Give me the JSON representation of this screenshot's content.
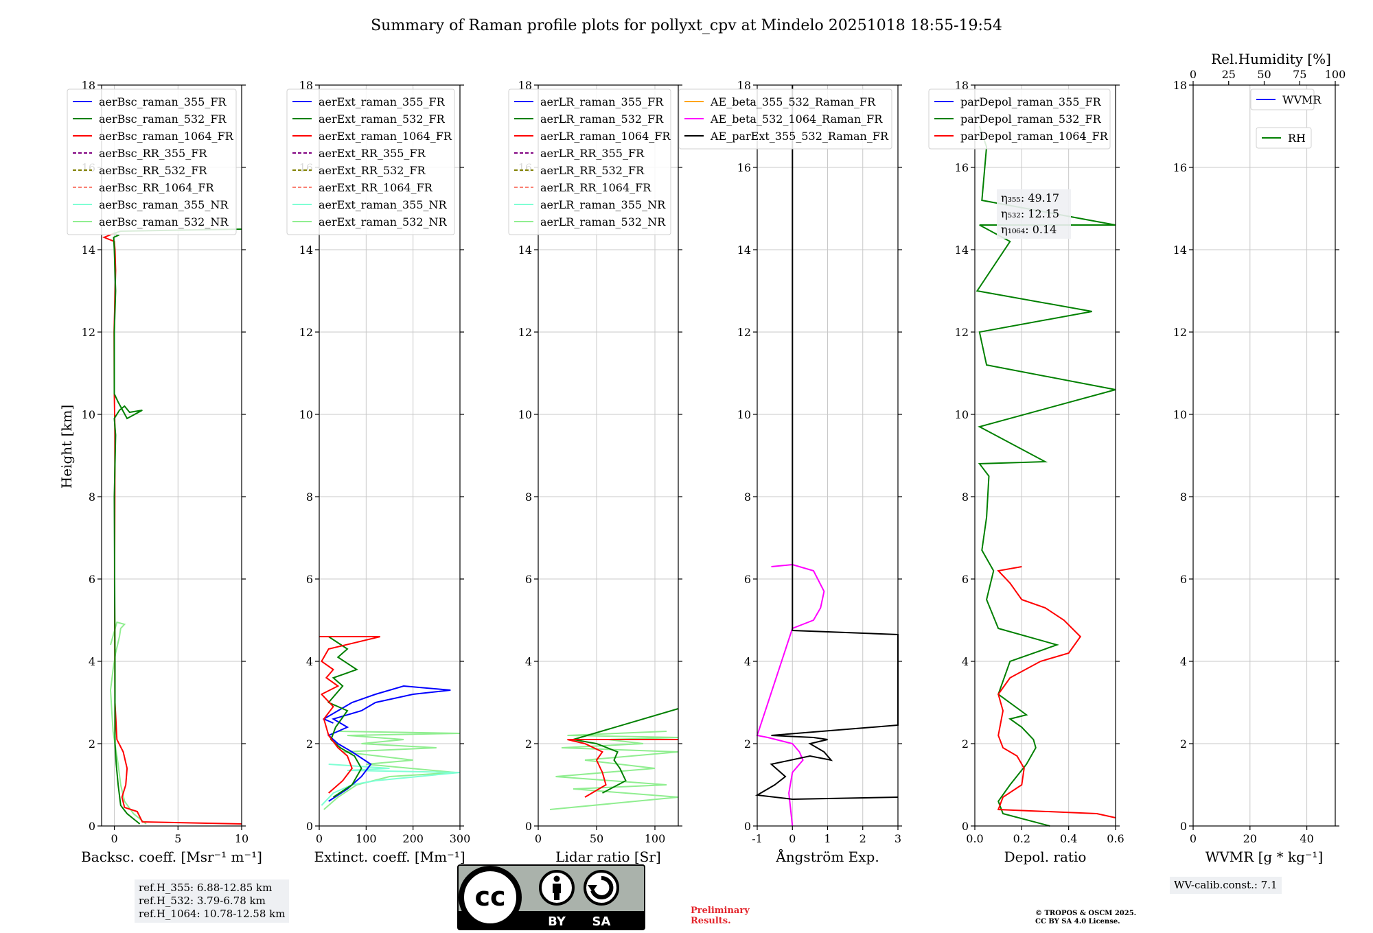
{
  "title": "Summary of Raman profile plots for pollyxt_cpv at Mindelo 20251018 18:55-19:54",
  "colors": {
    "blue": "#0000ff",
    "green": "#008000",
    "red": "#ff0000",
    "purple": "#800080",
    "olive": "#808000",
    "salmon": "#fa8072",
    "cyan": "#7fffd4",
    "lightgreen": "#90ee90",
    "orange": "#ffa500",
    "magenta": "#ff00ff",
    "black": "#000000"
  },
  "ylabel": "Height [km]",
  "chart_data": [
    {
      "type": "line",
      "xlabel": "Backsc. coeff. [Msr⁻¹ m⁻¹]",
      "xlim": [
        -1,
        10
      ],
      "ylim": [
        0,
        18
      ],
      "xticks": [
        0,
        5,
        10
      ],
      "yticks": [
        0,
        2,
        4,
        6,
        8,
        10,
        12,
        14,
        16,
        18
      ],
      "legend": [
        "aerBsc_raman_355_FR",
        "aerBsc_raman_532_FR",
        "aerBsc_raman_1064_FR",
        "aerBsc_RR_355_FR",
        "aerBsc_RR_532_FR",
        "aerBsc_RR_1064_FR",
        "aerBsc_raman_355_NR",
        "aerBsc_raman_532_NR"
      ],
      "series": [
        {
          "name": "aerBsc_raman_532_NR",
          "x": [
            2.5,
            1.5,
            0.8,
            0.5,
            0.3,
            0.1,
            -0.1,
            -0.2,
            -0.3,
            -0.1,
            0.1,
            0.4,
            0.5,
            0.8,
            0.2,
            -0.3
          ],
          "y": [
            0.05,
            0.3,
            0.6,
            1.0,
            1.5,
            1.9,
            2.3,
            2.8,
            3.3,
            3.8,
            4.2,
            4.6,
            4.8,
            4.9,
            4.95,
            4.4
          ]
        },
        {
          "name": "aerBsc_raman_1064_FR",
          "x": [
            10,
            2.2,
            1.8,
            0.8,
            0.6,
            0.9,
            1.0,
            0.7,
            0.2,
            0.05,
            0.02,
            0.05,
            0.0,
            -0.02,
            0.1,
            0.05,
            0.0,
            -0.8,
            0.0
          ],
          "y": [
            0.05,
            0.1,
            0.35,
            0.45,
            0.7,
            1.0,
            1.4,
            1.8,
            2.1,
            3.0,
            6.0,
            9.5,
            10.5,
            12.0,
            13.5,
            14.0,
            14.2,
            14.3,
            14.4
          ]
        },
        {
          "name": "aerBsc_raman_532_FR",
          "x": [
            2.0,
            1.0,
            0.5,
            0.3,
            0.15,
            0.05,
            0.05,
            0.0,
            0.1,
            0.0,
            0.4,
            0.8,
            1.2,
            2.2,
            1.0,
            0.3,
            0.0,
            0.0,
            0.1,
            0.0,
            -0.05,
            0.3,
            0.0,
            0.5,
            10.0
          ],
          "y": [
            0.05,
            0.3,
            0.5,
            1.0,
            1.5,
            2.0,
            4.0,
            8.0,
            9.5,
            9.9,
            10.1,
            10.2,
            10.05,
            10.1,
            9.9,
            10.3,
            10.5,
            12.0,
            13.0,
            14.0,
            14.3,
            14.35,
            14.4,
            14.45,
            14.5
          ]
        }
      ]
    },
    {
      "type": "line",
      "xlabel": "Extinct. coeff. [Mm⁻¹]",
      "xlim": [
        0,
        300
      ],
      "ylim": [
        0,
        18
      ],
      "xticks": [
        0,
        100,
        200,
        300
      ],
      "yticks": [
        0,
        2,
        4,
        6,
        8,
        10,
        12,
        14,
        16,
        18
      ],
      "legend": [
        "aerExt_raman_355_FR",
        "aerExt_raman_532_FR",
        "aerExt_raman_1064_FR",
        "aerExt_RR_355_FR",
        "aerExt_RR_532_FR",
        "aerExt_RR_1064_FR",
        "aerExt_raman_355_NR",
        "aerExt_raman_532_NR"
      ],
      "series": [
        {
          "name": "aerExt_raman_532_NR",
          "x": [
            10,
            40,
            80,
            150,
            290,
            100,
            200,
            50,
            250,
            90,
            180,
            60,
            300,
            40
          ],
          "y": [
            0.4,
            0.7,
            1.0,
            1.2,
            1.3,
            1.5,
            1.6,
            1.8,
            1.9,
            2.0,
            2.1,
            2.2,
            2.25,
            2.3
          ]
        },
        {
          "name": "aerExt_raman_355_NR",
          "x": [
            5,
            30,
            70,
            120,
            300,
            60,
            150,
            20
          ],
          "y": [
            0.5,
            0.8,
            1.0,
            1.1,
            1.3,
            1.35,
            1.4,
            1.5
          ]
        },
        {
          "name": "aerExt_raman_355_FR",
          "x": [
            20,
            60,
            90,
            110,
            70,
            40,
            20,
            60,
            30,
            90,
            120,
            200,
            280,
            180,
            120,
            70,
            40,
            10,
            30
          ],
          "y": [
            0.6,
            0.9,
            1.2,
            1.5,
            1.8,
            2.0,
            2.2,
            2.4,
            2.6,
            2.8,
            3.0,
            3.2,
            3.3,
            3.4,
            3.2,
            3.0,
            2.8,
            2.6,
            2.5
          ]
        },
        {
          "name": "aerExt_raman_532_FR",
          "x": [
            30,
            70,
            90,
            75,
            45,
            25,
            35,
            60,
            20,
            50,
            30,
            80,
            40,
            60,
            20
          ],
          "y": [
            0.7,
            1.0,
            1.4,
            1.7,
            1.9,
            2.1,
            2.4,
            2.8,
            3.0,
            3.4,
            3.6,
            3.8,
            4.1,
            4.3,
            4.6
          ]
        },
        {
          "name": "aerExt_raman_1064_FR",
          "x": [
            20,
            50,
            70,
            60,
            40,
            20,
            10,
            30,
            5,
            40,
            15,
            30,
            5,
            20,
            130,
            0
          ],
          "y": [
            0.8,
            1.1,
            1.4,
            1.7,
            1.9,
            2.2,
            2.6,
            2.9,
            3.2,
            3.4,
            3.6,
            3.8,
            4.0,
            4.3,
            4.6,
            4.6
          ]
        }
      ]
    },
    {
      "type": "line",
      "xlabel": "Lidar ratio [Sr]",
      "xlim": [
        0,
        120
      ],
      "ylim": [
        0,
        18
      ],
      "xticks": [
        0,
        50,
        100
      ],
      "yticks": [
        0,
        2,
        4,
        6,
        8,
        10,
        12,
        14,
        16,
        18
      ],
      "legend": [
        "aerLR_raman_355_FR",
        "aerLR_raman_532_FR",
        "aerLR_raman_1064_FR",
        "aerLR_RR_355_FR",
        "aerLR_RR_532_FR",
        "aerLR_RR_1064_FR",
        "aerLR_raman_355_NR",
        "aerLR_raman_532_NR"
      ],
      "series": [
        {
          "name": "aerLR_raman_532_NR",
          "x": [
            10,
            120,
            30,
            110,
            15,
            100,
            40,
            120,
            20,
            90,
            60,
            120,
            25,
            110
          ],
          "y": [
            0.4,
            0.7,
            0.9,
            1.0,
            1.2,
            1.4,
            1.6,
            1.8,
            1.9,
            2.0,
            2.1,
            2.15,
            2.2,
            2.3
          ]
        },
        {
          "name": "aerLR_raman_532_FR",
          "x": [
            55,
            75,
            70,
            65,
            68,
            50,
            30,
            120
          ],
          "y": [
            0.8,
            1.1,
            1.4,
            1.6,
            1.8,
            2.0,
            2.1,
            2.85
          ]
        },
        {
          "name": "aerLR_raman_1064_FR",
          "x": [
            40,
            58,
            55,
            50,
            55,
            40,
            25,
            120
          ],
          "y": [
            0.7,
            1.0,
            1.3,
            1.6,
            1.8,
            2.0,
            2.1,
            2.1
          ]
        }
      ]
    },
    {
      "type": "line",
      "xlabel": "Ångström Exp.",
      "xlim": [
        -1,
        3
      ],
      "ylim": [
        0,
        18
      ],
      "xticks": [
        -1,
        0,
        1,
        2,
        3
      ],
      "yticks": [
        0,
        2,
        4,
        6,
        8,
        10,
        12,
        14,
        16,
        18
      ],
      "legend": [
        "AE_beta_355_532_Raman_FR",
        "AE_beta_532_1064_Raman_FR",
        "AE_parExt_355_532_Raman_FR"
      ],
      "series": [
        {
          "name": "AE_beta_532_1064_Raman_FR",
          "x": [
            0.0,
            -0.1,
            0.0,
            0.3,
            0.2,
            0.0,
            -0.7,
            -1.0,
            0.0,
            0.6,
            0.8,
            0.9,
            0.6,
            0.0,
            -0.6
          ],
          "y": [
            0.0,
            0.8,
            1.3,
            1.6,
            1.8,
            2.0,
            2.15,
            2.2,
            4.8,
            5.0,
            5.3,
            5.7,
            6.2,
            6.35,
            6.3
          ]
        },
        {
          "name": "AE_parExt_355_532_Raman_FR",
          "x": [
            3.0,
            0.0,
            -1.0,
            -0.5,
            -0.2,
            -0.6,
            0.5,
            1.1,
            0.9,
            0.5,
            1.0,
            0.6,
            -0.6,
            3.0,
            3.0,
            0.0,
            0.0
          ],
          "y": [
            0.7,
            0.65,
            0.75,
            1.0,
            1.2,
            1.5,
            1.7,
            1.6,
            1.8,
            2.0,
            2.1,
            2.15,
            2.2,
            2.45,
            4.65,
            4.75,
            18.0
          ]
        }
      ]
    },
    {
      "type": "line",
      "xlabel": "Depol. ratio",
      "xlim": [
        0,
        0.6
      ],
      "ylim": [
        0,
        18
      ],
      "xticks": [
        0.0,
        0.2,
        0.4,
        0.6
      ],
      "yticks": [
        0,
        2,
        4,
        6,
        8,
        10,
        12,
        14,
        16,
        18
      ],
      "legend": [
        "parDepol_raman_355_FR",
        "parDepol_raman_532_FR",
        "parDepol_raman_1064_FR"
      ],
      "series": [
        {
          "name": "parDepol_raman_532_FR",
          "x": [
            0.32,
            0.12,
            0.1,
            0.15,
            0.22,
            0.26,
            0.25,
            0.2,
            0.15,
            0.22,
            0.1,
            0.15,
            0.35,
            0.1,
            0.05,
            0.08,
            0.03,
            0.05,
            0.06,
            0.02,
            0.3,
            0.02,
            0.6,
            0.05,
            0.02,
            0.5,
            0.01,
            0.15,
            0.02,
            0.6,
            0.03,
            0.05,
            0.02
          ],
          "y": [
            0.0,
            0.3,
            0.6,
            1.0,
            1.5,
            1.9,
            2.1,
            2.4,
            2.6,
            2.7,
            3.2,
            4.0,
            4.4,
            4.8,
            5.5,
            6.2,
            6.7,
            7.5,
            8.5,
            8.8,
            8.85,
            9.7,
            10.6,
            11.2,
            12.0,
            12.5,
            13.0,
            14.2,
            14.6,
            14.6,
            15.2,
            16.5,
            17.0
          ]
        },
        {
          "name": "parDepol_raman_1064_FR",
          "x": [
            0.6,
            0.52,
            0.1,
            0.12,
            0.2,
            0.21,
            0.18,
            0.12,
            0.1,
            0.12,
            0.1,
            0.15,
            0.28,
            0.4,
            0.45,
            0.38,
            0.3,
            0.2,
            0.15,
            0.1,
            0.2
          ],
          "y": [
            0.2,
            0.3,
            0.4,
            0.7,
            1.0,
            1.4,
            1.7,
            1.9,
            2.2,
            2.8,
            3.2,
            3.6,
            4.0,
            4.2,
            4.6,
            5.0,
            5.3,
            5.5,
            5.9,
            6.2,
            6.3
          ]
        }
      ],
      "annotations": [
        "η₃₅₅: 49.17",
        "η₅₃₂: 12.15",
        "η₁₀₆₄: 0.14"
      ]
    },
    {
      "type": "line",
      "xlabel": "WVMR [g * kg⁻¹]",
      "xlim": [
        0,
        50
      ],
      "ylim": [
        0,
        18
      ],
      "xticks": [
        0,
        20,
        40
      ],
      "yticks": [
        0,
        2,
        4,
        6,
        8,
        10,
        12,
        14,
        16,
        18
      ],
      "top_axis": {
        "label": "Rel.Humidity [%]",
        "xlim": [
          0,
          100
        ],
        "xticks": [
          0,
          25,
          50,
          75,
          100
        ]
      },
      "legend": [
        "WVMR",
        "RH"
      ],
      "series": []
    }
  ],
  "info": {
    "refH_355": "ref.H_355: 6.88-12.85 km",
    "refH_532": "ref.H_532: 3.79-6.78 km",
    "refH_1064": "ref.H_1064: 10.78-12.58 km",
    "wv_calib": "WV-calib.const.: 7.1",
    "preliminary_1": "Preliminary",
    "preliminary_2": "Results.",
    "copyright_1": "© TROPOS & OSCM 2025.",
    "copyright_2": "CC BY SA 4.0 License.",
    "cc_by": "BY",
    "cc_sa": "SA"
  }
}
